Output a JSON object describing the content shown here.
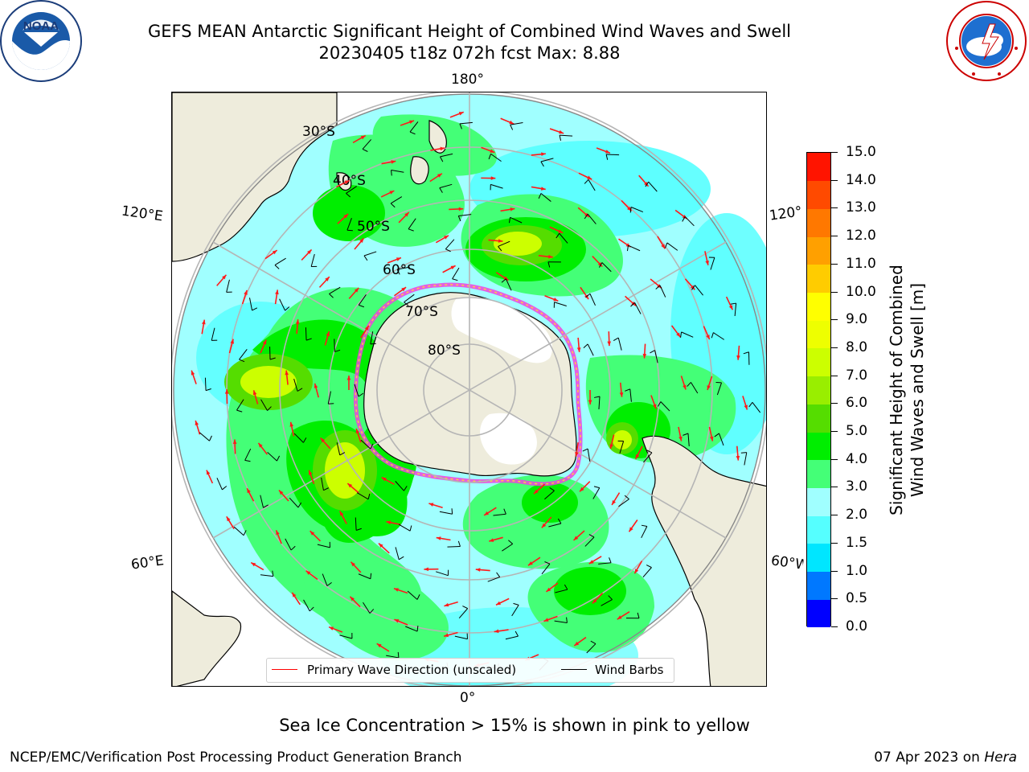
{
  "header": {
    "title_line1": "GEFS MEAN Antarctic Significant Height of Combined Wind Waves and Swell",
    "title_line2": "20230405 t18z 072h fcst   Max: 8.88"
  },
  "logos": {
    "noaa": {
      "text": "NOAA",
      "ring_text": "NATIONAL OCEANIC AND ATMOSPHERIC ADMINISTRATION · U.S. DEPARTMENT OF COMMERCE",
      "icon": "noaa-logo"
    },
    "nws": {
      "ring_text": "NATIONAL WEATHER SERVICE",
      "icon": "nws-logo"
    }
  },
  "map": {
    "lon_labels": {
      "top": "180°",
      "bottom": "0°",
      "upper_left": "120°E",
      "lower_left": "60°E",
      "upper_right": "120°W",
      "lower_right": "60°W"
    },
    "lat_labels": [
      "30°S",
      "40°S",
      "50°S",
      "60°S",
      "70°S",
      "80°S"
    ],
    "colors": {
      "land": "#eeecdc",
      "ice": "#ffffff",
      "sea_ice_edge": "#ee44dd",
      "graticule": "#b5b5b5",
      "wave_arrow": "#ff1a1a",
      "wind_barb": "#000000"
    }
  },
  "legend": {
    "items": [
      {
        "label": "Primary Wave Direction (unscaled)",
        "color": "#ff0000"
      },
      {
        "label": "Wind Barbs",
        "color": "#000000"
      }
    ]
  },
  "colorbar": {
    "title_line1": "Significant Height of Combined",
    "title_line2": "Wind Waves and Swell [m]",
    "ticks": [
      "0.0",
      "0.5",
      "1.0",
      "1.5",
      "2.0",
      "3.0",
      "4.0",
      "5.0",
      "6.0",
      "7.0",
      "8.0",
      "9.0",
      "10.0",
      "11.0",
      "12.0",
      "13.0",
      "14.0",
      "15.0"
    ],
    "colors": [
      "#0000ff",
      "#0078ff",
      "#00e6ff",
      "#55ffff",
      "#a0ffff",
      "#44ff77",
      "#00ee00",
      "#55dd00",
      "#99ee00",
      "#ccff00",
      "#eeff00",
      "#ffff00",
      "#ffcc00",
      "#ffa000",
      "#ff7800",
      "#ff4a00",
      "#ff1400"
    ]
  },
  "notes": {
    "ice_note": "Sea Ice Concentration > 15% is shown in pink to yellow"
  },
  "footer": {
    "left": "NCEP/EMC/Verification Post Processing Product Generation Branch",
    "date": "07 Apr 2023 on",
    "machine": "Hera"
  }
}
